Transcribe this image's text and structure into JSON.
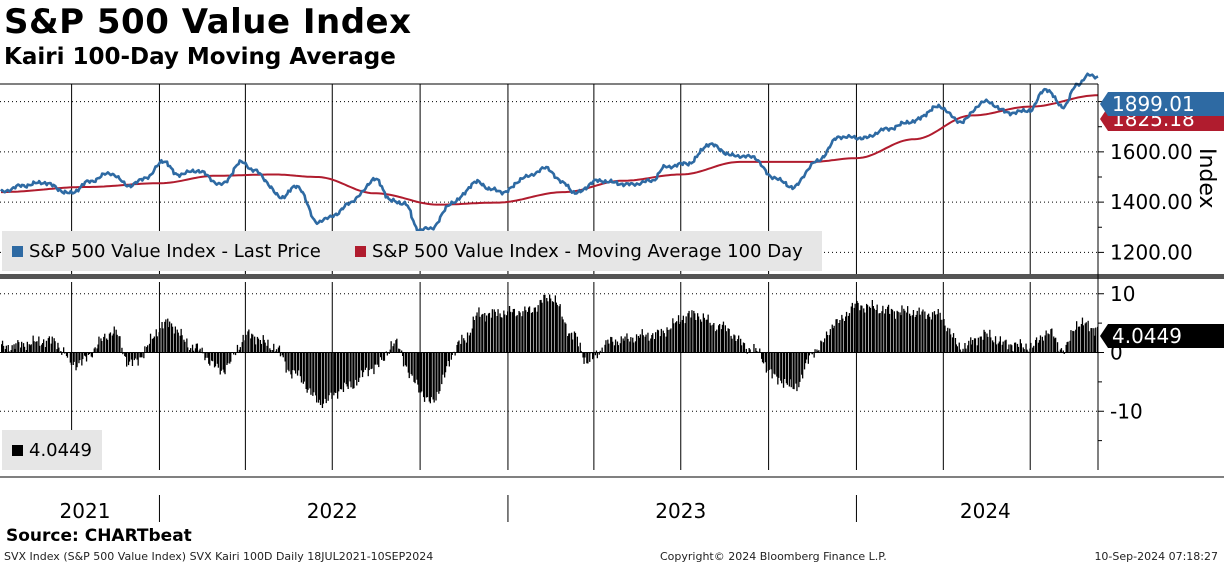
{
  "title": "S&P 500 Value Index",
  "subtitle": "Kairi 100-Day Moving Average",
  "source": "Source: CHARTbeat",
  "footer": {
    "left": "SVX Index (S&P 500 Value Index) SVX Kairi 100D  Daily 18JUL2021-10SEP2024",
    "middle": "Copyright© 2024 Bloomberg Finance L.P.",
    "right": "10-Sep-2024 07:18:27"
  },
  "colors": {
    "price": "#2e6aa3",
    "moving_average": "#b01c2e",
    "kairi": "#000000",
    "legend_bg": "#e6e6e6",
    "divider": "#555555"
  },
  "chart_data": [
    {
      "type": "line",
      "panel": "upper",
      "ylabel": "Index",
      "yticks": [
        "1200.00",
        "1400.00",
        "1600.00"
      ],
      "ylim": [
        1110,
        1870
      ],
      "legend": [
        "S&P 500 Value Index - Last Price",
        "S&P 500 Value Index - Moving Average 100 Day"
      ],
      "last_value_labels": {
        "price": "1899.01",
        "moving_average": "1825.18"
      },
      "series": [
        {
          "name": "S&P 500 Value Index - Last Price",
          "points": [
            [
              "2021-07-19",
              1440
            ],
            [
              "2021-08-10",
              1465
            ],
            [
              "2021-09-01",
              1478
            ],
            [
              "2021-09-30",
              1435
            ],
            [
              "2021-10-20",
              1482
            ],
            [
              "2021-11-10",
              1515
            ],
            [
              "2021-12-01",
              1466
            ],
            [
              "2021-12-20",
              1500
            ],
            [
              "2022-01-05",
              1565
            ],
            [
              "2022-01-20",
              1510
            ],
            [
              "2022-02-10",
              1525
            ],
            [
              "2022-03-07",
              1470
            ],
            [
              "2022-03-29",
              1560
            ],
            [
              "2022-04-10",
              1525
            ],
            [
              "2022-05-10",
              1420
            ],
            [
              "2022-05-25",
              1465
            ],
            [
              "2022-06-16",
              1320
            ],
            [
              "2022-07-05",
              1350
            ],
            [
              "2022-07-20",
              1400
            ],
            [
              "2022-08-16",
              1490
            ],
            [
              "2022-09-01",
              1405
            ],
            [
              "2022-09-15",
              1395
            ],
            [
              "2022-09-30",
              1290
            ],
            [
              "2022-10-12",
              1295
            ],
            [
              "2022-11-05",
              1400
            ],
            [
              "2022-11-30",
              1480
            ],
            [
              "2022-12-15",
              1450
            ],
            [
              "2022-12-28",
              1440
            ],
            [
              "2023-01-20",
              1500
            ],
            [
              "2023-02-10",
              1535
            ],
            [
              "2023-03-01",
              1475
            ],
            [
              "2023-03-13",
              1435
            ],
            [
              "2023-04-05",
              1485
            ],
            [
              "2023-05-10",
              1470
            ],
            [
              "2023-06-01",
              1485
            ],
            [
              "2023-06-15",
              1540
            ],
            [
              "2023-07-10",
              1555
            ],
            [
              "2023-07-31",
              1630
            ],
            [
              "2023-08-25",
              1585
            ],
            [
              "2023-09-15",
              1580
            ],
            [
              "2023-10-05",
              1500
            ],
            [
              "2023-10-27",
              1460
            ],
            [
              "2023-11-20",
              1560
            ],
            [
              "2023-12-15",
              1660
            ],
            [
              "2024-01-10",
              1655
            ],
            [
              "2024-02-01",
              1690
            ],
            [
              "2024-02-28",
              1720
            ],
            [
              "2024-03-28",
              1780
            ],
            [
              "2024-04-19",
              1720
            ],
            [
              "2024-05-15",
              1800
            ],
            [
              "2024-06-10",
              1755
            ],
            [
              "2024-07-01",
              1765
            ],
            [
              "2024-07-17",
              1850
            ],
            [
              "2024-08-05",
              1780
            ],
            [
              "2024-08-20",
              1870
            ],
            [
              "2024-09-01",
              1905
            ],
            [
              "2024-09-10",
              1899.01
            ]
          ]
        },
        {
          "name": "S&P 500 Value Index - Moving Average 100 Day",
          "points": [
            [
              "2021-07-19",
              1440
            ],
            [
              "2021-10-15",
              1460
            ],
            [
              "2022-01-01",
              1475
            ],
            [
              "2022-03-01",
              1505
            ],
            [
              "2022-05-01",
              1510
            ],
            [
              "2022-06-15",
              1500
            ],
            [
              "2022-08-15",
              1435
            ],
            [
              "2022-10-20",
              1390
            ],
            [
              "2022-12-20",
              1398
            ],
            [
              "2023-03-01",
              1440
            ],
            [
              "2023-05-01",
              1485
            ],
            [
              "2023-07-01",
              1510
            ],
            [
              "2023-09-01",
              1560
            ],
            [
              "2023-11-15",
              1560
            ],
            [
              "2024-01-01",
              1575
            ],
            [
              "2024-03-01",
              1650
            ],
            [
              "2024-05-01",
              1745
            ],
            [
              "2024-07-01",
              1780
            ],
            [
              "2024-09-10",
              1825.18
            ]
          ]
        }
      ]
    },
    {
      "type": "bar",
      "panel": "lower",
      "name": "Kairi 100D",
      "yticks": [
        "10",
        "0",
        "-10"
      ],
      "ylim": [
        -20,
        12
      ],
      "last_value_label": "4.0449",
      "legend": [
        "4.0449"
      ],
      "profile": [
        [
          "2021-07-19",
          1.0
        ],
        [
          "2021-09-10",
          2.0
        ],
        [
          "2021-10-05",
          -2.0
        ],
        [
          "2021-11-15",
          3.5
        ],
        [
          "2021-12-01",
          -2.0
        ],
        [
          "2022-01-10",
          5.0
        ],
        [
          "2022-02-05",
          1.0
        ],
        [
          "2022-03-07",
          -3.0
        ],
        [
          "2022-04-05",
          3.0
        ],
        [
          "2022-05-01",
          1.0
        ],
        [
          "2022-05-20",
          -3.5
        ],
        [
          "2022-06-20",
          -8.5
        ],
        [
          "2022-07-15",
          -6.0
        ],
        [
          "2022-08-15",
          -2.5
        ],
        [
          "2022-09-05",
          1.5
        ],
        [
          "2022-09-25",
          -5.0
        ],
        [
          "2022-10-10",
          -8.5
        ],
        [
          "2022-11-15",
          2.0
        ],
        [
          "2022-12-01",
          6.5
        ],
        [
          "2023-01-20",
          7.0
        ],
        [
          "2023-02-15",
          9.5
        ],
        [
          "2023-03-10",
          3.0
        ],
        [
          "2023-03-25",
          -1.5
        ],
        [
          "2023-04-20",
          2.0
        ],
        [
          "2023-06-01",
          3.0
        ],
        [
          "2023-07-15",
          6.5
        ],
        [
          "2023-08-10",
          4.5
        ],
        [
          "2023-09-15",
          0.5
        ],
        [
          "2023-10-10",
          -4.5
        ],
        [
          "2023-10-27",
          -6.0
        ],
        [
          "2023-11-20",
          0.5
        ],
        [
          "2023-12-10",
          5.0
        ],
        [
          "2024-01-01",
          8.0
        ],
        [
          "2024-02-15",
          7.0
        ],
        [
          "2024-03-25",
          6.5
        ],
        [
          "2024-04-20",
          1.0
        ],
        [
          "2024-05-15",
          3.0
        ],
        [
          "2024-06-05",
          1.5
        ],
        [
          "2024-07-01",
          1.0
        ],
        [
          "2024-07-20",
          3.5
        ],
        [
          "2024-08-05",
          0.5
        ],
        [
          "2024-08-20",
          5.0
        ],
        [
          "2024-09-10",
          4.0449
        ]
      ]
    }
  ],
  "x_axis": {
    "year_labels": [
      "2021",
      "2022",
      "2023",
      "2024"
    ],
    "year_label_dates": [
      "2021-10-15",
      "2022-07-01",
      "2023-07-01",
      "2024-05-15"
    ],
    "divider_dates": [
      "2022-01-01",
      "2023-01-01",
      "2024-01-01"
    ],
    "gridline_dates": [
      "2021-10-01",
      "2022-01-01",
      "2022-04-01",
      "2022-07-01",
      "2022-10-01",
      "2023-01-01",
      "2023-04-01",
      "2023-07-01",
      "2023-10-01",
      "2024-01-01",
      "2024-04-01",
      "2024-07-01"
    ],
    "start": "2021-07-18",
    "end": "2024-09-10"
  }
}
